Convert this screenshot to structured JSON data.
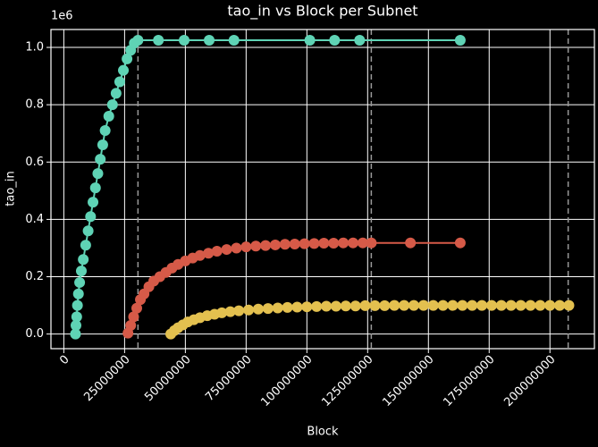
{
  "chart_data": {
    "type": "line",
    "title": "tao_in vs Block per Subnet",
    "x_label": "Block",
    "y_label": "tao_in",
    "y_offset_label": "1e6",
    "xlim": [
      -5300000,
      218300000
    ],
    "ylim": [
      -51000,
      1062500
    ],
    "xticks": [
      0,
      25000000,
      50000000,
      75000000,
      100000000,
      125000000,
      150000000,
      175000000,
      200000000
    ],
    "yticks": [
      {
        "value": 0,
        "label": "0.0"
      },
      {
        "value": 200000,
        "label": "0.2"
      },
      {
        "value": 400000,
        "label": "0.4"
      },
      {
        "value": 600000,
        "label": "0.6"
      },
      {
        "value": 800000,
        "label": "0.8"
      },
      {
        "value": 1000000,
        "label": "1.0"
      }
    ],
    "grid": true,
    "vlines": [
      30500000,
      126500000,
      207500000
    ],
    "series": [
      {
        "color": "#5fd3b5",
        "x": [
          4800000,
          5000000,
          5300000,
          5600000,
          6000000,
          6500000,
          7200000,
          8000000,
          9000000,
          10000000,
          11000000,
          12000000,
          13000000,
          14000000,
          15000000,
          16000000,
          17000000,
          18500000,
          20000000,
          21500000,
          23000000,
          24500000,
          26000000,
          27500000,
          29000000,
          30500000,
          38900000,
          49500000,
          59800000,
          70000000,
          101200000,
          111400000,
          121700000,
          163100000
        ],
        "values": [
          0,
          30000,
          60000,
          100000,
          140000,
          180000,
          220000,
          260000,
          310000,
          360000,
          410000,
          460000,
          510000,
          560000,
          610000,
          660000,
          710000,
          760000,
          800000,
          840000,
          880000,
          920000,
          960000,
          990000,
          1015000,
          1025000,
          1025000,
          1025000,
          1025000,
          1025000,
          1025000,
          1025000,
          1025000,
          1025000
        ]
      },
      {
        "color": "#d65a48",
        "x": [
          26400000,
          27500000,
          28700000,
          30000000,
          31500000,
          33000000,
          35000000,
          37000000,
          39500000,
          42000000,
          44500000,
          47000000,
          50000000,
          53000000,
          56000000,
          59500000,
          63000000,
          67000000,
          71000000,
          75000000,
          79000000,
          83000000,
          87000000,
          91000000,
          95000000,
          99000000,
          103000000,
          107000000,
          111000000,
          115000000,
          119000000,
          123000000,
          126500000,
          142600000,
          163100000
        ],
        "values": [
          3000,
          30000,
          60000,
          90000,
          120000,
          140000,
          165000,
          185000,
          200000,
          215000,
          230000,
          243000,
          255000,
          265000,
          274000,
          282000,
          289000,
          295000,
          300000,
          304000,
          307000,
          309000,
          311000,
          313000,
          314000,
          315000,
          316000,
          317000,
          317000,
          318000,
          318000,
          318000,
          318000,
          318000,
          318000
        ]
      },
      {
        "color": "#e3c04f",
        "x": [
          44000000,
          45500000,
          47000000,
          49000000,
          51000000,
          53500000,
          56000000,
          59000000,
          62000000,
          65000000,
          68500000,
          72000000,
          76000000,
          80000000,
          84000000,
          88000000,
          92000000,
          96000000,
          100000000,
          104000000,
          108000000,
          112000000,
          116000000,
          120000000,
          124000000,
          128000000,
          132000000,
          136000000,
          140000000,
          144000000,
          148000000,
          152000000,
          156000000,
          160000000,
          164000000,
          168000000,
          172000000,
          176000000,
          180000000,
          184000000,
          188000000,
          192000000,
          196000000,
          200000000,
          204000000,
          207800000
        ],
        "values": [
          0,
          12000,
          22000,
          32000,
          42000,
          50000,
          57000,
          64000,
          69000,
          74000,
          78000,
          81000,
          84000,
          87000,
          89000,
          91000,
          93000,
          94000,
          95000,
          96000,
          97000,
          97000,
          98000,
          98000,
          99000,
          99000,
          99000,
          100000,
          100000,
          100000,
          100000,
          100000,
          100000,
          100000,
          100000,
          100000,
          100000,
          100000,
          100000,
          100000,
          100000,
          100000,
          100000,
          100000,
          100000,
          100000
        ]
      }
    ]
  }
}
